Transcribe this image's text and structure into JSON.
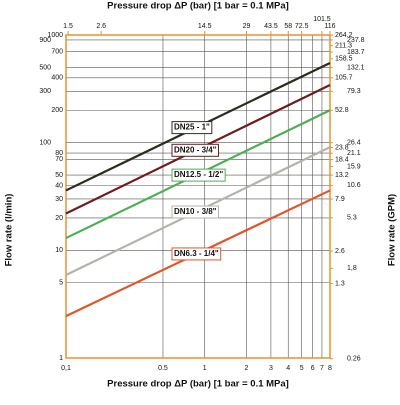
{
  "chart_data": {
    "type": "line",
    "x_label": "Pressure drop ΔP (bar) [1 bar = 0.1 MPa]",
    "x2_label": "Pressure drop ΔP (bar) [1 bar = 0.1 MPa]",
    "y_label": "Flow rate (l/min)",
    "y2_label": "Flow rate (GPM)",
    "xlog": true,
    "ylog": true,
    "grid": true,
    "frame_color": "#e8922e",
    "x": [
      0.1,
      8
    ],
    "xlim": [
      0.1,
      8
    ],
    "xticks": [
      {
        "value": 0.1,
        "label": "0,1"
      },
      0.5,
      1,
      2,
      3,
      4,
      5,
      6,
      7,
      8
    ],
    "x2lim": [
      1.45,
      116
    ],
    "x2ticks": [
      1.5,
      2.6,
      14.5,
      29,
      43.5,
      58,
      72.5,
      101.5,
      116
    ],
    "ylim": [
      1,
      1000
    ],
    "yticks": [
      1000,
      900,
      700,
      500,
      400,
      300,
      200,
      100,
      80,
      70,
      50,
      40,
      30,
      20,
      10,
      5,
      1
    ],
    "y2lim": [
      0.2642,
      264.2
    ],
    "y2ticks": [
      264.2,
      237.8,
      211.3,
      183.7,
      158.5,
      132.1,
      105.7,
      79.3,
      52.8,
      26.4,
      23.8,
      21.1,
      18.4,
      15.9,
      13.2,
      10.6,
      7.9,
      5.3,
      2.6,
      {
        "value": 1.8,
        "label": "1,8"
      },
      1.3,
      0.26
    ],
    "series": [
      {
        "name": "DN25 - 1\"",
        "color": "#2b2b1e",
        "values": [
          36,
          550
        ]
      },
      {
        "name": "DN20 - 3/4\"",
        "color": "#6e1c1c",
        "values": [
          22,
          343
        ]
      },
      {
        "name": "DN12.5 - 1/2\"",
        "color": "#4caf50",
        "values": [
          13,
          200
        ]
      },
      {
        "name": "DN10 - 3/8\"",
        "color": "#b3b3aa",
        "values": [
          5.9,
          91
        ]
      },
      {
        "name": "DN6.3 - 1/4\"",
        "color": "#e0552a",
        "values": [
          2.45,
          36
        ]
      }
    ]
  }
}
